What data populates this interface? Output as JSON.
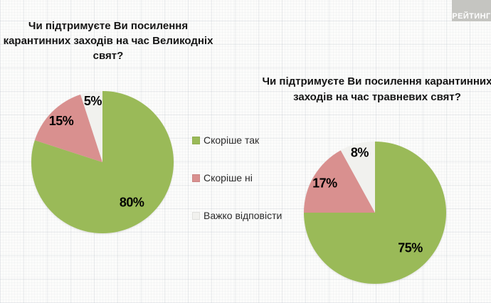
{
  "logo": {
    "text": "РЕЙТИНГ"
  },
  "legend": {
    "items": [
      {
        "label": "Скоріше так",
        "color": "#9aba58"
      },
      {
        "label": "Скоріше ні",
        "color": "#d9908f"
      },
      {
        "label": "Важко відповісти",
        "color": "#f1f1ee"
      }
    ]
  },
  "chart_data": [
    {
      "type": "pie",
      "title": "Чи підтримуєте Ви посилення\nкарантинних заходів на час Великодніх\nсвят?",
      "labels": [
        "Скоріше так",
        "Скоріше ні",
        "Важко відповісти"
      ],
      "values": [
        80,
        15,
        5
      ],
      "data_labels": [
        "80%",
        "15%",
        "5%"
      ],
      "colors": [
        "#9aba58",
        "#d9908f",
        "#f1f1ee"
      ],
      "start_angle": 0,
      "direction": "clockwise",
      "legend_position": "right-of-chart"
    },
    {
      "type": "pie",
      "title": "Чи підтримуєте Ви посилення карантинних\nзаходів на час травневих свят?",
      "labels": [
        "Скоріше так",
        "Скоріше ні",
        "Важко відповісти"
      ],
      "values": [
        75,
        17,
        8
      ],
      "data_labels": [
        "75%",
        "17%",
        "8%"
      ],
      "colors": [
        "#9aba58",
        "#d9908f",
        "#f1f1ee"
      ],
      "start_angle": 0,
      "direction": "clockwise",
      "legend_position": "left-of-chart"
    }
  ]
}
